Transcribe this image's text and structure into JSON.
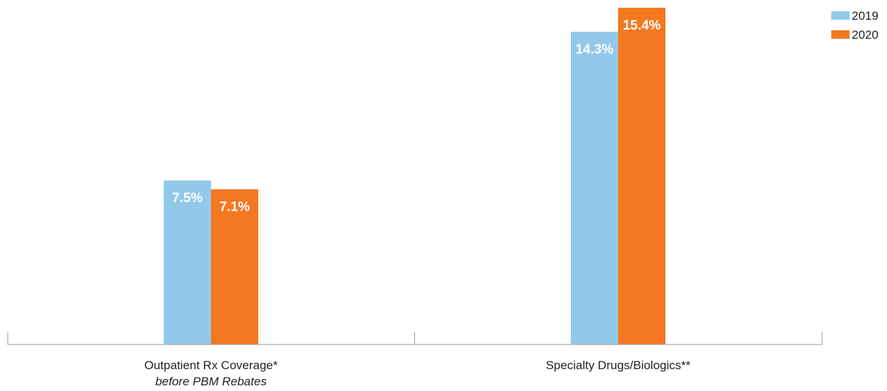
{
  "chart_data": {
    "type": "bar",
    "categories": [
      "Outpatient Rx Coverage*",
      "Specialty Drugs/Biologics**"
    ],
    "category_sublabels": [
      "before PBM Rebates",
      ""
    ],
    "series": [
      {
        "name": "2019",
        "values": [
          7.5,
          14.3
        ],
        "labels": [
          "7.5%",
          "14.3%"
        ],
        "color": "#92c9ea"
      },
      {
        "name": "2020",
        "values": [
          7.1,
          15.4
        ],
        "labels": [
          "7.1%",
          "15.4%"
        ],
        "color": "#f47822"
      }
    ],
    "ylim": [
      0,
      15.4
    ],
    "grid": false,
    "legend": "top-right",
    "axis_color": "#9a9a9a"
  }
}
